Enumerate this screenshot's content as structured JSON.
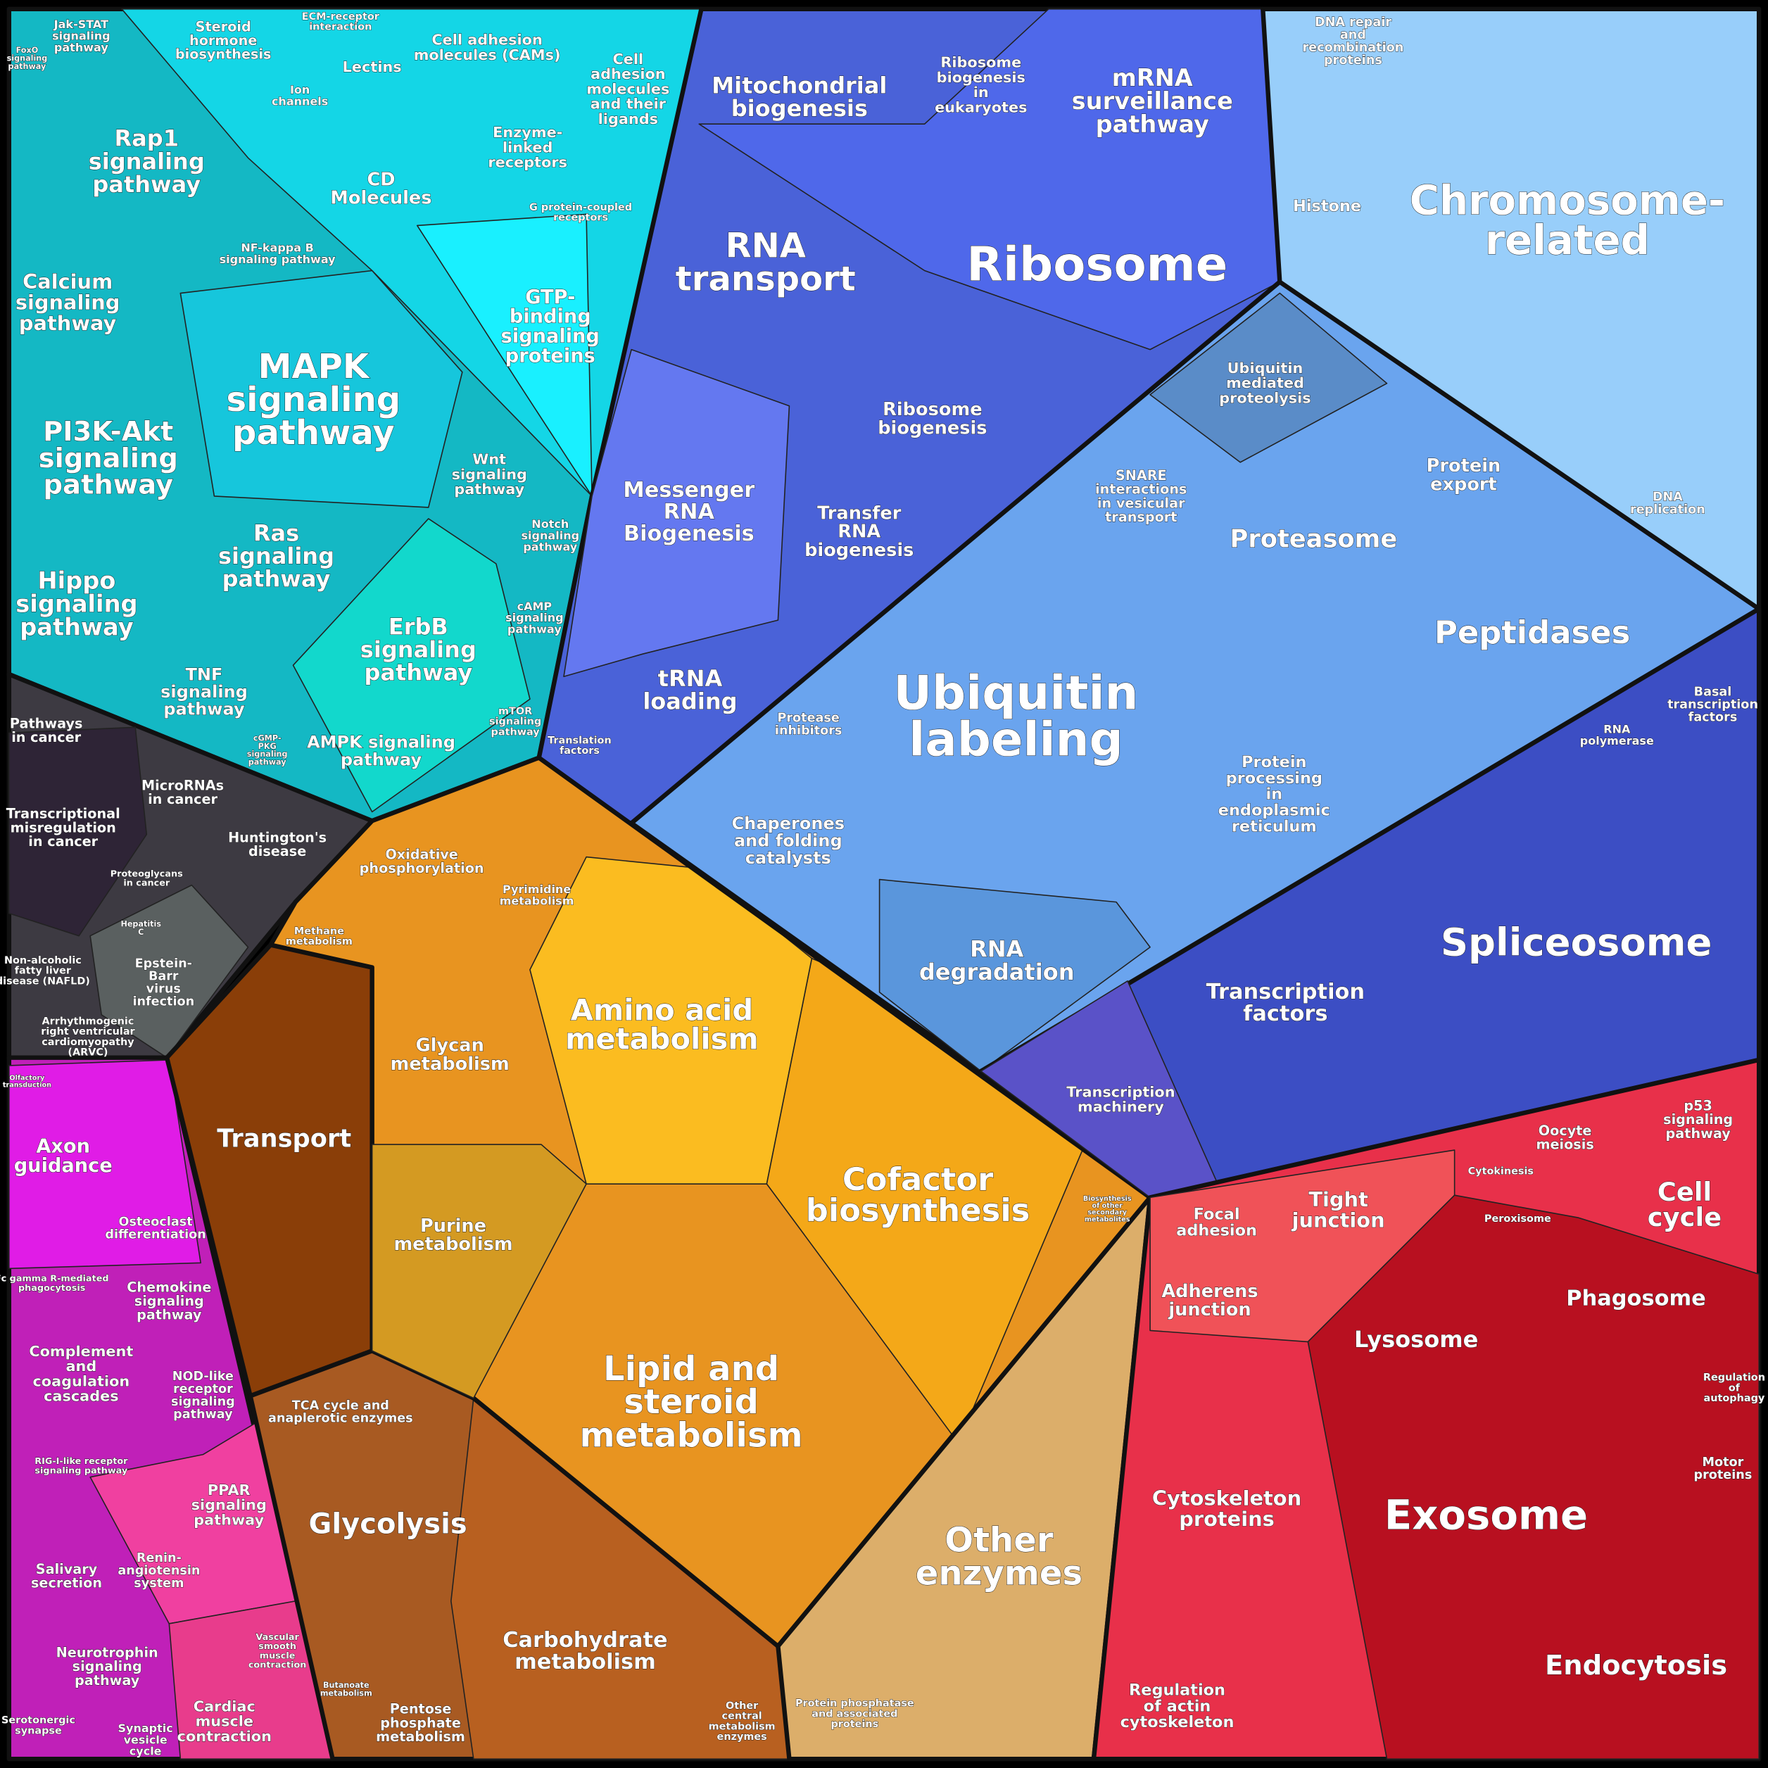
{
  "labels": [
    [
      "Jak-STAT",
      "signaling",
      "pathway"
    ],
    [
      "FoxO",
      "signaling",
      "pathway"
    ],
    [
      "Steroid",
      "hormone",
      "biosynthesis"
    ],
    [
      "ECM-receptor",
      "interaction"
    ],
    [
      "Cell adhesion",
      "molecules (CAMs)"
    ],
    [
      "Cell",
      "adhesion",
      "molecules",
      "and their",
      "ligands"
    ],
    [
      "Lectins"
    ],
    [
      "Ion",
      "channels"
    ],
    [
      "CD",
      "Molecules"
    ],
    [
      "Enzyme-",
      "linked",
      "receptors"
    ],
    [
      "G protein-coupled",
      "receptors"
    ],
    [
      "Rap1",
      "signaling",
      "pathway"
    ],
    [
      "NF-kappa B",
      "signaling pathway"
    ],
    [
      "GTP-",
      "binding",
      "signaling",
      "proteins"
    ],
    [
      "Calcium",
      "signaling",
      "pathway"
    ],
    [
      "MAPK",
      "signaling",
      "pathway"
    ],
    [
      "PI3K-Akt",
      "signaling",
      "pathway"
    ],
    [
      "Wnt",
      "signaling",
      "pathway"
    ],
    [
      "Ras",
      "signaling",
      "pathway"
    ],
    [
      "Notch",
      "signaling",
      "pathway"
    ],
    [
      "Hippo",
      "signaling",
      "pathway"
    ],
    [
      "ErbB",
      "signaling",
      "pathway"
    ],
    [
      "cAMP",
      "signaling",
      "pathway"
    ],
    [
      "TNF",
      "signaling",
      "pathway"
    ],
    [
      "mTOR",
      "signaling",
      "pathway"
    ],
    [
      "cGMP-",
      "PKG",
      "signaling",
      "pathway"
    ],
    [
      "AMPK signaling",
      "pathway"
    ],
    [
      "Pathways",
      "in cancer"
    ],
    [
      "MicroRNAs",
      "in cancer"
    ],
    [
      "Transcriptional",
      "misregulation",
      "in cancer"
    ],
    [
      "Huntington's",
      "disease"
    ],
    [
      "Proteoglycans",
      "in cancer"
    ],
    [
      "Hepatitis",
      "C"
    ],
    [
      "Non-alcoholic",
      "fatty liver",
      "disease (NAFLD)"
    ],
    [
      "Epstein-",
      "Barr",
      "virus",
      "infection"
    ],
    [
      "Arrhythmogenic",
      "right ventricular",
      "cardiomyopathy",
      "(ARVC)"
    ],
    [
      "Olfactory",
      "transduction"
    ],
    [
      "Axon",
      "guidance"
    ],
    [
      "Osteoclast",
      "differentiation"
    ],
    [
      "Fc gamma R-mediated",
      "phagocytosis"
    ],
    [
      "Chemokine",
      "signaling",
      "pathway"
    ],
    [
      "Complement",
      "and",
      "coagulation",
      "cascades"
    ],
    [
      "NOD-like",
      "receptor",
      "signaling",
      "pathway"
    ],
    [
      "RIG-I-like receptor",
      "signaling pathway"
    ],
    [
      "PPAR",
      "signaling",
      "pathway"
    ],
    [
      "Renin-",
      "angiotensin",
      "system"
    ],
    [
      "Salivary",
      "secretion"
    ],
    [
      "Neurotrophin",
      "signaling",
      "pathway"
    ],
    [
      "Vascular",
      "smooth",
      "muscle",
      "contraction"
    ],
    [
      "Cardiac",
      "muscle",
      "contraction"
    ],
    [
      "Serotonergic",
      "synapse"
    ],
    [
      "Synaptic",
      "vesicle",
      "cycle"
    ],
    [
      "Oxidative",
      "phosphorylation"
    ],
    [
      "Pyrimidine",
      "metabolism"
    ],
    [
      "Methane",
      "metabolism"
    ],
    [
      "Transport"
    ],
    [
      "Glycan",
      "metabolism"
    ],
    [
      "Amino acid",
      "metabolism"
    ],
    [
      "Cofactor",
      "biosynthesis"
    ],
    [
      "Biosynthesis",
      "of other",
      "secondary",
      "metabolites"
    ],
    [
      "Purine",
      "metabolism"
    ],
    [
      "Lipid and",
      "steroid",
      "metabolism"
    ],
    [
      "TCA cycle and",
      "anaplerotic enzymes"
    ],
    [
      "Glycolysis"
    ],
    [
      "Carbohydrate",
      "metabolism"
    ],
    [
      "Butanoate",
      "metabolism"
    ],
    [
      "Pentose",
      "phosphate",
      "metabolism"
    ],
    [
      "Other",
      "central",
      "metabolism",
      "enzymes"
    ],
    [
      "Other",
      "enzymes"
    ],
    [
      "Protein phosphatase",
      "and associated",
      "proteins"
    ],
    [
      "Mitochondrial",
      "biogenesis"
    ],
    [
      "Ribosome",
      "biogenesis",
      "in",
      "eukaryotes"
    ],
    [
      "mRNA",
      "surveillance",
      "pathway"
    ],
    [
      "DNA repair",
      "and",
      "recombination",
      "proteins"
    ],
    [
      "RNA",
      "transport"
    ],
    [
      "Ribosome"
    ],
    [
      "Histone"
    ],
    [
      "Chromosome-",
      "related"
    ],
    [
      "Ubiquitin",
      "mediated",
      "proteolysis"
    ],
    [
      "Ribosome",
      "biogenesis"
    ],
    [
      "SNARE",
      "interactions",
      "in vesicular",
      "transport"
    ],
    [
      "Protein",
      "export"
    ],
    [
      "DNA",
      "replication"
    ],
    [
      "Messenger",
      "RNA",
      "Biogenesis"
    ],
    [
      "Transfer",
      "RNA",
      "biogenesis"
    ],
    [
      "Proteasome"
    ],
    [
      "Peptidases"
    ],
    [
      "tRNA",
      "loading"
    ],
    [
      "Ubiquitin",
      "labeling"
    ],
    [
      "Basal",
      "transcription",
      "factors"
    ],
    [
      "Protease",
      "inhibitors"
    ],
    [
      "RNA",
      "polymerase"
    ],
    [
      "Translation",
      "factors"
    ],
    [
      "Protein",
      "processing",
      "in",
      "endoplasmic",
      "reticulum"
    ],
    [
      "Chaperones",
      "and folding",
      "catalysts"
    ],
    [
      "Spliceosome"
    ],
    [
      "RNA",
      "degradation"
    ],
    [
      "Transcription",
      "factors"
    ],
    [
      "Transcription",
      "machinery"
    ],
    [
      "Oocyte",
      "meiosis"
    ],
    [
      "p53",
      "signaling",
      "pathway"
    ],
    [
      "Cytokinesis"
    ],
    [
      "Tight",
      "junction"
    ],
    [
      "Focal",
      "adhesion"
    ],
    [
      "Cell",
      "cycle"
    ],
    [
      "Peroxisome"
    ],
    [
      "Phagosome"
    ],
    [
      "Adherens",
      "junction"
    ],
    [
      "Lysosome"
    ],
    [
      "Regulation",
      "of",
      "autophagy"
    ],
    [
      "Motor",
      "proteins"
    ],
    [
      "Cytoskeleton",
      "proteins"
    ],
    [
      "Exosome"
    ],
    [
      "Endocytosis"
    ],
    [
      "Regulation",
      "of actin",
      "cytoskeleton"
    ]
  ]
}
